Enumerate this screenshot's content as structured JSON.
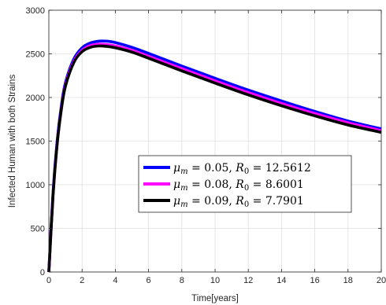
{
  "chart_data": {
    "type": "line",
    "xlabel": "Time[years]",
    "ylabel": "Infected Human with both Strains",
    "xlim": [
      0,
      20
    ],
    "ylim": [
      0,
      3000
    ],
    "xticks": [
      0,
      2,
      4,
      6,
      8,
      10,
      12,
      14,
      16,
      18,
      20
    ],
    "yticks": [
      0,
      500,
      1000,
      1500,
      2000,
      2500,
      3000
    ],
    "grid": true,
    "legend_position": "center-right",
    "series": [
      {
        "name": "μm = 0.05, R0 = 12.5612",
        "legend_mu": "0.05",
        "legend_r0": "12.5612",
        "color": "#0000ff",
        "x": [
          0,
          0.25,
          0.5,
          0.75,
          1,
          1.5,
          2,
          2.5,
          3,
          3.5,
          4,
          5,
          6,
          8,
          10,
          12,
          14,
          16,
          18,
          20
        ],
        "y": [
          0,
          900,
          1500,
          1900,
          2170,
          2440,
          2570,
          2625,
          2645,
          2645,
          2630,
          2575,
          2505,
          2360,
          2220,
          2085,
          1960,
          1840,
          1730,
          1640
        ]
      },
      {
        "name": "μm = 0.08, R0 = 8.6001",
        "legend_mu": "0.08",
        "legend_r0": "8.6001",
        "color": "#ff00ff",
        "x": [
          0,
          0.25,
          0.5,
          0.75,
          1,
          1.5,
          2,
          2.5,
          3,
          3.5,
          4,
          5,
          6,
          8,
          10,
          12,
          14,
          16,
          18,
          20
        ],
        "y": [
          0,
          880,
          1475,
          1875,
          2145,
          2415,
          2540,
          2595,
          2610,
          2605,
          2590,
          2540,
          2470,
          2330,
          2190,
          2055,
          1930,
          1815,
          1710,
          1620
        ]
      },
      {
        "name": "μm = 0.09, R0 = 7.7901",
        "legend_mu": "0.09",
        "legend_r0": "7.7901",
        "color": "#000000",
        "x": [
          0,
          0.25,
          0.5,
          0.75,
          1,
          1.5,
          2,
          2.5,
          3,
          3.5,
          4,
          5,
          6,
          8,
          10,
          12,
          14,
          16,
          18,
          20
        ],
        "y": [
          0,
          870,
          1465,
          1860,
          2130,
          2400,
          2525,
          2575,
          2590,
          2585,
          2570,
          2520,
          2450,
          2305,
          2165,
          2030,
          1905,
          1790,
          1685,
          1600
        ]
      }
    ]
  }
}
